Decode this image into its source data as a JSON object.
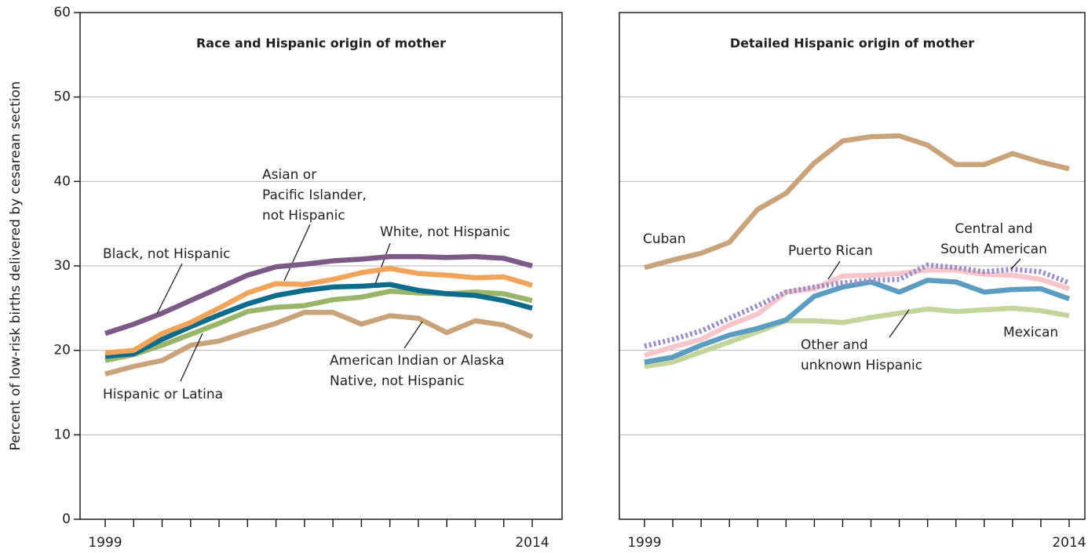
{
  "chart_data": [
    {
      "type": "line",
      "title": "Race and Hispanic origin of mother",
      "ylabel": "Percent of low-risk births delivered by cesarean section",
      "categories": [
        "1999",
        null,
        null,
        null,
        null,
        null,
        null,
        null,
        null,
        null,
        null,
        null,
        null,
        null,
        null,
        "2014"
      ],
      "ylim": [
        0,
        60
      ],
      "yticks": [
        0,
        10,
        20,
        30,
        40,
        50,
        60
      ],
      "grid": true,
      "series": [
        {
          "name": "Black, not Hispanic",
          "color": "#7b5a85",
          "values": [
            22.0,
            23.1,
            24.4,
            25.9,
            27.4,
            28.9,
            29.9,
            30.2,
            30.6,
            30.8,
            31.1,
            31.1,
            31.0,
            31.1,
            30.9,
            30.0
          ]
        },
        {
          "name": "Asian or\nPacific Islander,\nnot Hispanic",
          "color": "#f2a45b",
          "values": [
            19.7,
            20.0,
            22.0,
            23.3,
            25.0,
            26.8,
            27.9,
            27.8,
            28.4,
            29.2,
            29.7,
            29.1,
            28.9,
            28.6,
            28.7,
            27.7
          ]
        },
        {
          "name": "White, not Hispanic",
          "color": "#0d6b8b",
          "values": [
            19.3,
            19.6,
            21.3,
            22.8,
            24.2,
            25.5,
            26.5,
            27.1,
            27.5,
            27.6,
            27.8,
            27.1,
            26.7,
            26.5,
            25.9,
            25.0
          ]
        },
        {
          "name": "Hispanic or Latina",
          "color": "#9ab56a",
          "values": [
            18.8,
            19.5,
            20.6,
            21.9,
            23.2,
            24.6,
            25.1,
            25.3,
            26.0,
            26.3,
            27.0,
            26.8,
            26.7,
            26.9,
            26.7,
            25.9
          ]
        },
        {
          "name": "American Indian or Alaska\nNative, not Hispanic",
          "color": "#c9a47a",
          "values": [
            17.2,
            18.1,
            18.8,
            20.6,
            21.1,
            22.2,
            23.2,
            24.5,
            24.5,
            23.1,
            24.1,
            23.8,
            22.1,
            23.5,
            23.0,
            21.6
          ]
        }
      ]
    },
    {
      "type": "line",
      "title": "Detailed Hispanic origin of mother",
      "categories": [
        "1999",
        null,
        null,
        null,
        null,
        null,
        null,
        null,
        null,
        null,
        null,
        null,
        null,
        null,
        null,
        "2014"
      ],
      "ylim": [
        0,
        60
      ],
      "grid": true,
      "series": [
        {
          "name": "Cuban",
          "color": "#c9a47a",
          "values": [
            29.8,
            30.7,
            31.5,
            32.8,
            36.7,
            38.6,
            42.2,
            44.8,
            45.3,
            45.4,
            44.3,
            42.0,
            42.0,
            43.3,
            42.3,
            41.5
          ]
        },
        {
          "name": "Central and\nSouth American",
          "color": "#9c8fc4",
          "style": "dotted",
          "values": [
            20.5,
            21.3,
            22.3,
            23.8,
            25.3,
            26.9,
            27.5,
            28.0,
            28.3,
            28.4,
            30.1,
            29.8,
            29.3,
            29.6,
            29.3,
            28.0
          ]
        },
        {
          "name": "Puerto Rican",
          "color": "#f6c6cc",
          "values": [
            19.4,
            20.4,
            21.3,
            23.0,
            24.3,
            26.9,
            27.3,
            28.8,
            28.9,
            29.1,
            29.5,
            29.5,
            29.0,
            28.9,
            28.4,
            27.3
          ]
        },
        {
          "name": "Other and\nunknown Hispanic",
          "color": "#5b9cc0",
          "values": [
            18.6,
            19.2,
            20.6,
            21.8,
            22.6,
            23.6,
            26.4,
            27.5,
            28.1,
            26.9,
            28.3,
            28.1,
            26.9,
            27.2,
            27.3,
            26.1
          ]
        },
        {
          "name": "Mexican",
          "color": "#c3d59a",
          "values": [
            18.1,
            18.6,
            19.8,
            21.0,
            22.2,
            23.5,
            23.5,
            23.3,
            23.9,
            24.4,
            24.9,
            24.6,
            24.8,
            25.0,
            24.7,
            24.1
          ]
        }
      ]
    }
  ]
}
